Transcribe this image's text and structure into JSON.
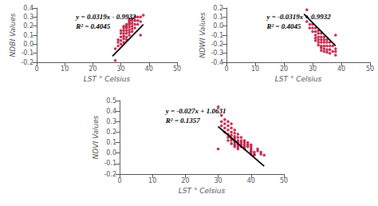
{
  "chart_data": [
    {
      "type": "scatter",
      "xlabel": "LST ° Celsius",
      "ylabel": "NDBI Values",
      "annotations": [
        "y = 0.0319x - 0.9932",
        "R² = 0.4045"
      ],
      "xlim": [
        0,
        50
      ],
      "ylim": [
        -0.2,
        0.4
      ],
      "xticks": [
        0,
        10,
        20,
        30,
        40,
        50
      ],
      "yticks": [
        -0.2,
        -0.1,
        {
          "value": 0,
          "label": "0.0"
        },
        0.1,
        0.2,
        0.3,
        0.4
      ],
      "grid": false,
      "series": [
        {
          "type": "scatter",
          "color": "#c0143c",
          "marker": "circle",
          "x": [
            28,
            29,
            29,
            29,
            30,
            30,
            30,
            30,
            30,
            31,
            31,
            31,
            31,
            31,
            31,
            31,
            32,
            32,
            32,
            32,
            32,
            32,
            32,
            33,
            33,
            33,
            33,
            33,
            33,
            33,
            33,
            34,
            34,
            34,
            34,
            34,
            34,
            35,
            35,
            35,
            35,
            36,
            36,
            36,
            37,
            37,
            38,
            28,
            37
          ],
          "values": [
            -0.05,
            -0.02,
            0.02,
            0.05,
            0.0,
            0.04,
            0.08,
            0.12,
            0.15,
            0.02,
            0.06,
            0.09,
            0.12,
            0.15,
            0.18,
            0.2,
            0.05,
            0.08,
            0.12,
            0.15,
            0.18,
            0.2,
            0.22,
            0.1,
            0.13,
            0.16,
            0.19,
            0.22,
            0.24,
            0.26,
            0.28,
            0.14,
            0.17,
            0.2,
            0.23,
            0.26,
            0.28,
            0.18,
            0.22,
            0.26,
            0.3,
            0.22,
            0.26,
            0.3,
            0.25,
            0.3,
            0.32,
            -0.18,
            0.1
          ]
        },
        {
          "type": "line",
          "color": "#000000",
          "line_style": "solid",
          "x": [
            27,
            38
          ],
          "values": [
            -0.1319,
            0.219
          ]
        }
      ]
    },
    {
      "type": "scatter",
      "xlabel": "LST ° Celsius",
      "ylabel": "NDWI Values",
      "annotations": [
        "y = -0.0319x + 0.9932",
        "R² = 0.4045"
      ],
      "xlim": [
        0,
        50
      ],
      "ylim": [
        -0.4,
        0.2
      ],
      "xticks": [
        0,
        10,
        20,
        30,
        40,
        50
      ],
      "yticks": [
        -0.4,
        -0.3,
        -0.2,
        -0.1,
        {
          "value": 0,
          "label": "0.0"
        },
        0.1,
        0.2
      ],
      "grid": false,
      "series": [
        {
          "type": "scatter",
          "color": "#c0143c",
          "marker": "circle",
          "x": [
            28,
            28,
            29,
            29,
            30,
            30,
            30,
            31,
            31,
            31,
            31,
            31,
            32,
            32,
            32,
            32,
            32,
            32,
            33,
            33,
            33,
            33,
            33,
            33,
            33,
            34,
            34,
            34,
            34,
            34,
            34,
            35,
            35,
            35,
            35,
            35,
            36,
            36,
            36,
            36,
            37,
            37,
            38,
            38,
            38,
            28,
            38
          ],
          "values": [
            0.05,
            0.1,
            0.02,
            -0.02,
            0.02,
            -0.02,
            -0.06,
            -0.02,
            -0.06,
            -0.1,
            -0.13,
            -0.16,
            -0.05,
            -0.08,
            -0.12,
            -0.15,
            -0.18,
            -0.21,
            -0.08,
            -0.12,
            -0.15,
            -0.18,
            -0.22,
            -0.24,
            -0.27,
            -0.12,
            -0.15,
            -0.18,
            -0.22,
            -0.25,
            -0.28,
            -0.15,
            -0.18,
            -0.22,
            -0.26,
            -0.29,
            -0.18,
            -0.22,
            -0.26,
            -0.3,
            -0.22,
            -0.28,
            -0.25,
            -0.28,
            -0.32,
            0.18,
            -0.1
          ]
        },
        {
          "type": "line",
          "color": "#000000",
          "line_style": "solid",
          "x": [
            27,
            38
          ],
          "values": [
            0.1319,
            -0.219
          ]
        }
      ]
    },
    {
      "type": "scatter",
      "xlabel": "LST ° Celsius",
      "ylabel": "NDVI Values",
      "annotations": [
        "y = -0.027x + 1.0631",
        "R² = 0.1357"
      ],
      "xlim": [
        0,
        50
      ],
      "ylim": [
        -0.2,
        0.5
      ],
      "xticks": [
        0,
        10,
        20,
        30,
        40,
        50
      ],
      "yticks": [
        -0.2,
        -0.1,
        {
          "value": 0,
          "label": "0.0"
        },
        0.1,
        0.2,
        0.3,
        0.4,
        0.5
      ],
      "grid": false,
      "series": [
        {
          "type": "scatter",
          "color": "#c0143c",
          "marker": "circle",
          "x": [
            30,
            31,
            31,
            31,
            32,
            32,
            32,
            32,
            33,
            33,
            33,
            33,
            33,
            33,
            34,
            34,
            34,
            34,
            34,
            34,
            34,
            35,
            35,
            35,
            35,
            35,
            35,
            35,
            35,
            36,
            36,
            36,
            36,
            36,
            36,
            36,
            37,
            37,
            37,
            37,
            37,
            38,
            38,
            38,
            38,
            38,
            39,
            39,
            39,
            40,
            40,
            40,
            40,
            40,
            40,
            41,
            41,
            41,
            42,
            42,
            43,
            43,
            44,
            30
          ],
          "values": [
            0.44,
            0.36,
            0.3,
            0.26,
            0.32,
            0.28,
            0.24,
            0.2,
            0.3,
            0.26,
            0.22,
            0.18,
            0.15,
            0.12,
            0.28,
            0.24,
            0.2,
            0.17,
            0.14,
            0.12,
            0.09,
            0.22,
            0.19,
            0.16,
            0.14,
            0.12,
            0.1,
            0.08,
            0.06,
            0.18,
            0.15,
            0.12,
            0.1,
            0.08,
            0.06,
            0.04,
            0.15,
            0.12,
            0.1,
            0.08,
            0.06,
            0.12,
            0.1,
            0.08,
            0.06,
            0.04,
            0.1,
            0.08,
            0.06,
            0.08,
            0.06,
            0.04,
            0.02,
            0.01,
            -0.01,
            -0.02,
            0.01,
            -0.01,
            0.04,
            0.02,
            -0.01,
            0.01,
            -0.02,
            0.04
          ]
        },
        {
          "type": "line",
          "color": "#000000",
          "line_style": "solid",
          "x": [
            30,
            44
          ],
          "values": [
            0.2531,
            -0.1249
          ]
        }
      ]
    }
  ]
}
